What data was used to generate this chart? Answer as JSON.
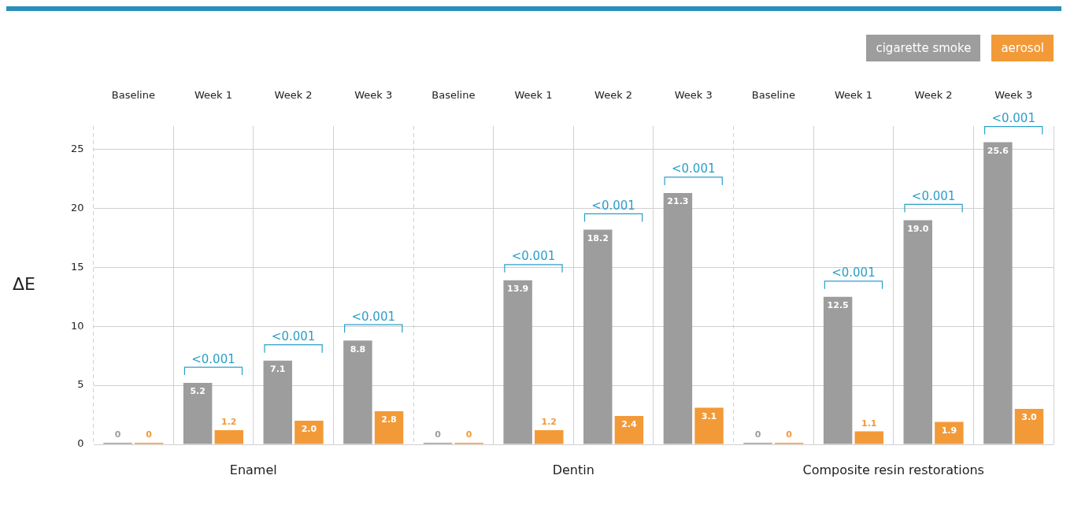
{
  "chart_data": {
    "type": "bar",
    "ylabel": "ΔE",
    "categories": [
      "Baseline",
      "Week 1",
      "Week 2",
      "Week 3",
      "Baseline",
      "Week 1",
      "Week 2",
      "Week 3",
      "Baseline",
      "Week 1",
      "Week 2",
      "Week 3"
    ],
    "series": [
      {
        "name": "cigarette smoke",
        "color": "#9d9d9d",
        "values": [
          0,
          5.2,
          7.1,
          8.8,
          0,
          13.9,
          18.2,
          21.3,
          0,
          12.5,
          19.0,
          25.6
        ],
        "value_labels": [
          "0",
          "5.2",
          "7.1",
          "8.8",
          "0",
          "13.9",
          "18.2",
          "21.3",
          "0",
          "12.5",
          "19.0",
          "25.6"
        ]
      },
      {
        "name": "aerosol",
        "color": "#f29a38",
        "values": [
          0,
          1.2,
          2.0,
          2.8,
          0,
          1.2,
          2.4,
          3.1,
          0,
          1.1,
          1.9,
          3.0
        ],
        "value_labels": [
          "0",
          "1.2",
          "2.0",
          "2.8",
          "0",
          "1.2",
          "2.4",
          "3.1",
          "0",
          "1.1",
          "1.9",
          "3.0"
        ]
      }
    ],
    "ylim": [
      0,
      27
    ],
    "yticks": [
      0,
      5,
      10,
      15,
      20,
      25
    ],
    "grid": true,
    "legend": "top right",
    "annotations": [
      "Enamel",
      "Dentin",
      "Composite resin restorations",
      "<0.001",
      "<0.001",
      "<0.001",
      "<0.001",
      "<0.001",
      "<0.001",
      "<0.001",
      "<0.001",
      "<0.001"
    ]
  }
}
